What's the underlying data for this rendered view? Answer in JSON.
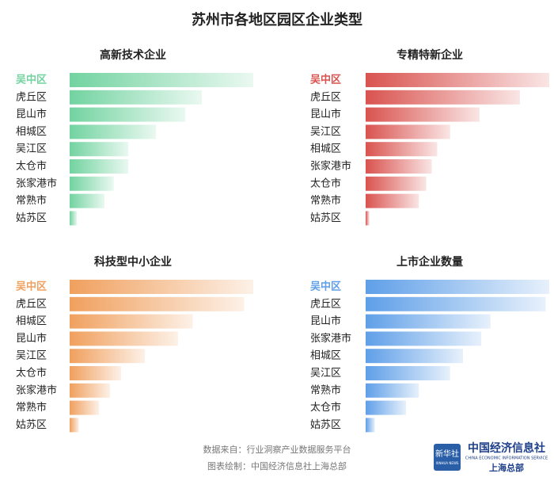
{
  "title": "苏州市各地区园区企业类型",
  "chart_data": [
    {
      "type": "bar",
      "orientation": "horizontal",
      "title": "高新技术企业",
      "color": "#72d3a0",
      "categories": [
        "吴中区",
        "虎丘区",
        "昆山市",
        "相城区",
        "吴江区",
        "太仓市",
        "张家港市",
        "常熟市",
        "姑苏区"
      ],
      "values": [
        100,
        72,
        63,
        47,
        32,
        32,
        24,
        19,
        4
      ],
      "xlim": [
        0,
        100
      ]
    },
    {
      "type": "bar",
      "orientation": "horizontal",
      "title": "专精特新企业",
      "color": "#d9534f",
      "categories": [
        "吴中区",
        "虎丘区",
        "昆山市",
        "吴江区",
        "相城区",
        "张家港市",
        "太仓市",
        "常熟市",
        "姑苏区"
      ],
      "values": [
        100,
        84,
        62,
        46,
        39,
        36,
        33,
        29,
        2
      ],
      "xlim": [
        0,
        100
      ]
    },
    {
      "type": "bar",
      "orientation": "horizontal",
      "title": "科技型中小企业",
      "color": "#f0a05e",
      "categories": [
        "吴中区",
        "虎丘区",
        "相城区",
        "昆山市",
        "吴江区",
        "太仓市",
        "张家港市",
        "常熟市",
        "姑苏区"
      ],
      "values": [
        100,
        95,
        67,
        59,
        41,
        28,
        22,
        16,
        5
      ],
      "xlim": [
        0,
        100
      ]
    },
    {
      "type": "bar",
      "orientation": "horizontal",
      "title": "上市企业数量",
      "color": "#5f9fe8",
      "categories": [
        "吴中区",
        "虎丘区",
        "昆山市",
        "张家港市",
        "相城区",
        "吴江区",
        "常熟市",
        "太仓市",
        "姑苏区"
      ],
      "values": [
        100,
        98,
        68,
        63,
        53,
        46,
        29,
        22,
        5
      ],
      "xlim": [
        0,
        100
      ]
    }
  ],
  "footer": {
    "source": "数据来自：行业洞察产业数据服务平台",
    "credit": "图表绘制：中国经济信息社上海总部",
    "logo": "新华社",
    "logo_en": "XINHUA NEWS",
    "org": "中国经济信息社",
    "org_en": "CHINA ECONOMIC INFORMATION SERVICE",
    "branch": "上海总部"
  }
}
